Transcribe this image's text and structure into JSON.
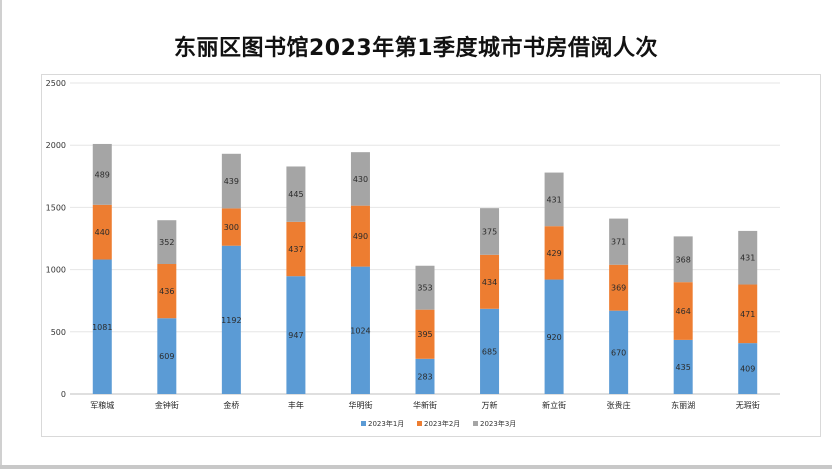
{
  "chart_data": {
    "type": "bar",
    "stacked": true,
    "title": "东丽区图书馆2023年第1季度城市书房借阅人次",
    "categories": [
      "军粮城",
      "金钟街",
      "金桥",
      "丰年",
      "华明街",
      "华新街",
      "万新",
      "新立街",
      "张贵庄",
      "东丽湖",
      "无瑕街"
    ],
    "series": [
      {
        "name": "2023年1月",
        "color": "#5b9bd5",
        "values": [
          1081,
          609,
          1192,
          947,
          1024,
          283,
          685,
          920,
          670,
          435,
          409
        ]
      },
      {
        "name": "2023年2月",
        "color": "#ed7d31",
        "values": [
          440,
          436,
          300,
          437,
          490,
          395,
          434,
          429,
          369,
          464,
          471
        ]
      },
      {
        "name": "2023年3月",
        "color": "#a5a5a5",
        "values": [
          489,
          352,
          439,
          445,
          430,
          353,
          375,
          431,
          371,
          368,
          431
        ]
      }
    ],
    "y_ticks": [
      0,
      500,
      1000,
      1500,
      2000,
      2500
    ],
    "ylim": [
      0,
      2500
    ],
    "grid": true,
    "legend_position": "bottom"
  }
}
